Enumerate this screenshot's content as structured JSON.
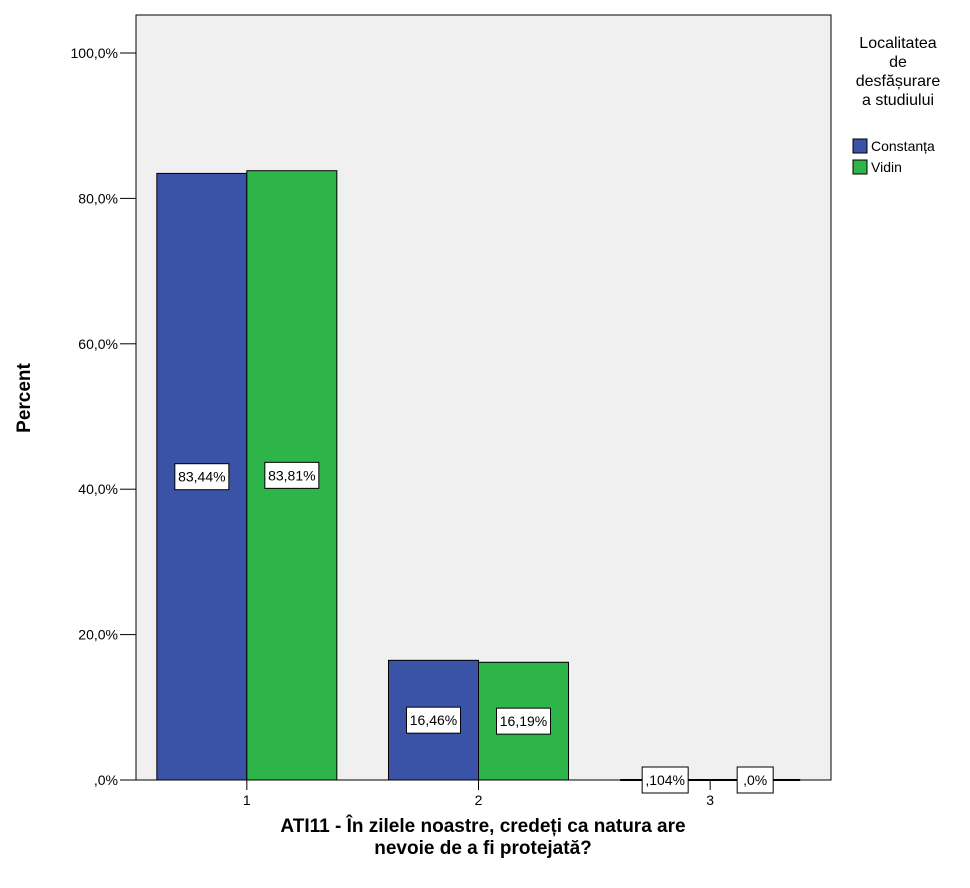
{
  "chart_data": {
    "type": "bar",
    "categories": [
      "1",
      "2",
      "3"
    ],
    "series": [
      {
        "name": "Constanța",
        "color": "#3b53a6",
        "values": [
          83.44,
          16.46,
          0.104
        ],
        "labels": [
          "83,44%",
          "16,46%",
          ",104%"
        ]
      },
      {
        "name": "Vidin",
        "color": "#2db54a",
        "values": [
          83.81,
          16.19,
          0.0
        ],
        "labels": [
          "83,81%",
          "16,19%",
          ",0%"
        ]
      }
    ],
    "ylabel": "Percent",
    "xlabel_lines": [
      "ATI11 - În zilele noastre, credeți ca natura are",
      "nevoie de a fi protejată?"
    ],
    "ylim": [
      0,
      100
    ],
    "yticks": [
      0,
      20,
      40,
      60,
      80,
      100
    ],
    "ytick_labels": [
      ",0%",
      "20,0%",
      "40,0%",
      "60,0%",
      "80,0%",
      "100,0%"
    ],
    "legend": {
      "title_lines": [
        "Localitatea",
        "de",
        "desfășurare",
        "a studiului"
      ],
      "placement": "right"
    },
    "plot_background": "#f0f0f0",
    "grid": false
  }
}
